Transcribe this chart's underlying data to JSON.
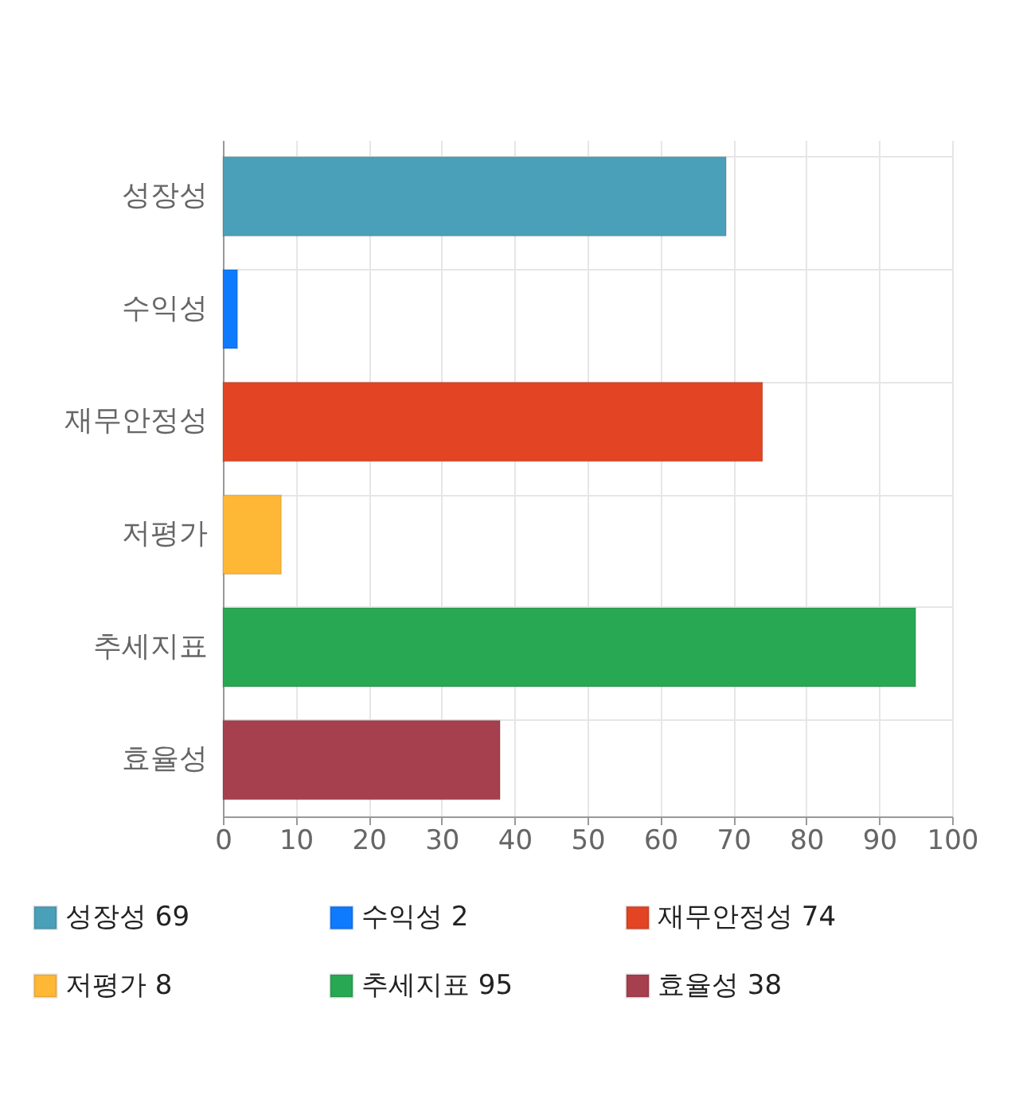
{
  "chart_data": {
    "type": "bar",
    "orientation": "horizontal",
    "categories": [
      "성장성",
      "수익성",
      "재무안정성",
      "저평가",
      "추세지표",
      "효율성"
    ],
    "series": [
      {
        "name": "성장성 69",
        "color": "#4aa0b8",
        "values": [
          69,
          null,
          null,
          null,
          null,
          null
        ]
      },
      {
        "name": "수익성 2",
        "color": "#0e7afe",
        "values": [
          null,
          2,
          null,
          null,
          null,
          null
        ]
      },
      {
        "name": "재무안정성 74",
        "color": "#e24424",
        "values": [
          null,
          null,
          74,
          null,
          null,
          null
        ]
      },
      {
        "name": "저평가 8",
        "color": "#ffb835",
        "values": [
          null,
          null,
          null,
          8,
          null,
          null
        ]
      },
      {
        "name": "추세지표 95",
        "color": "#29a854",
        "values": [
          null,
          null,
          null,
          null,
          95,
          null
        ]
      },
      {
        "name": "효율성 38",
        "color": "#a7404e",
        "values": [
          null,
          null,
          null,
          null,
          null,
          38
        ]
      }
    ],
    "xlim": [
      0,
      100
    ],
    "xticks": [
      0,
      10,
      20,
      30,
      40,
      50,
      60,
      70,
      80,
      90,
      100
    ],
    "grid": true,
    "legend": "bottom"
  }
}
